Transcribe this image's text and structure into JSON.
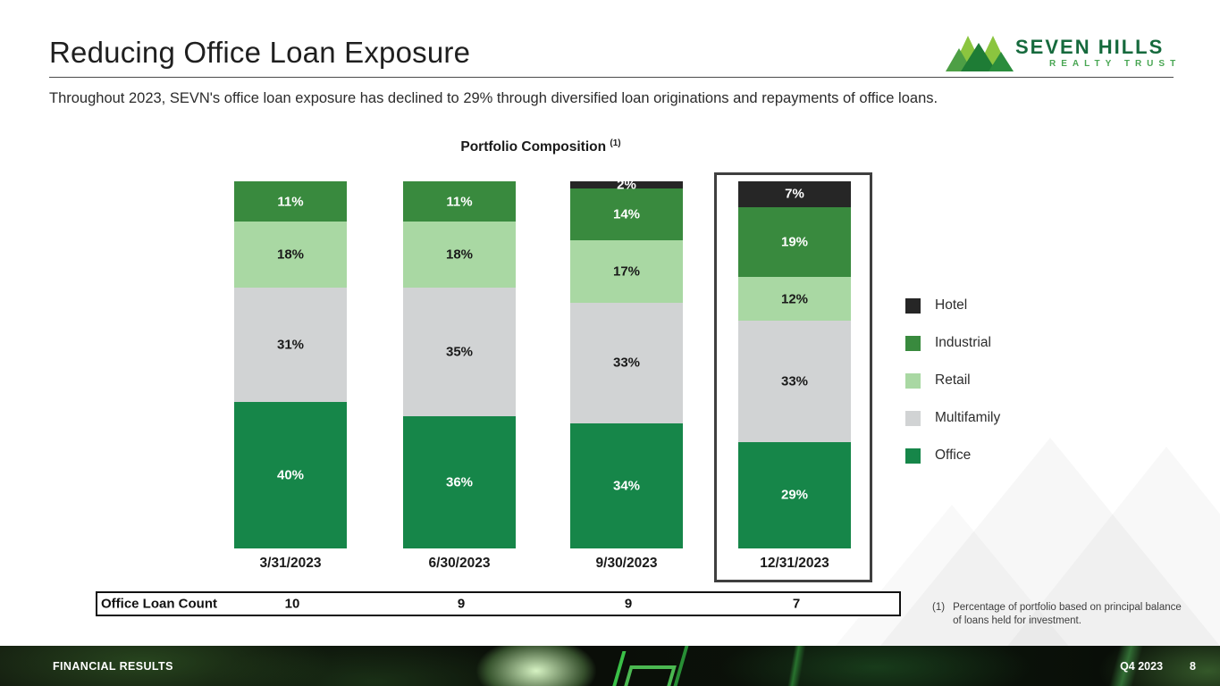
{
  "slide": {
    "title": "Reducing Office Loan Exposure",
    "subtitle": "Throughout 2023, SEVN's office loan exposure has declined to 29% through diversified loan originations and repayments of office loans."
  },
  "logo": {
    "name": "SEVEN HILLS",
    "tagline": "REALTY TRUST",
    "colors": {
      "light_green": "#8bc53f",
      "mid_green": "#4d9f45",
      "dark_green": "#1e7c35",
      "text_green": "#166a3d",
      "tagline_green": "#49a653"
    }
  },
  "chart_data": {
    "type": "bar",
    "stacked": true,
    "title": "Portfolio Composition",
    "title_footnote_ref": "(1)",
    "categories": [
      "3/31/2023",
      "6/30/2023",
      "9/30/2023",
      "12/31/2023"
    ],
    "series": [
      {
        "name": "Hotel",
        "color": "#262626",
        "label_color": "#ffffff",
        "values": [
          0,
          0,
          2,
          7
        ]
      },
      {
        "name": "Industrial",
        "color": "#398a3e",
        "label_color": "#ffffff",
        "values": [
          11,
          11,
          14,
          19
        ]
      },
      {
        "name": "Retail",
        "color": "#a9d8a3",
        "label_color": "#1a1a1a",
        "values": [
          18,
          18,
          17,
          12
        ]
      },
      {
        "name": "Multifamily",
        "color": "#d1d3d4",
        "label_color": "#1a1a1a",
        "values": [
          31,
          35,
          33,
          33
        ]
      },
      {
        "name": "Office",
        "color": "#168649",
        "label_color": "#ffffff",
        "values": [
          40,
          36,
          34,
          29
        ]
      }
    ],
    "value_suffix": "%",
    "ylim": [
      0,
      100
    ],
    "grid": false,
    "legend_position": "right",
    "highlighted_category": "12/31/2023"
  },
  "table": {
    "label": "Office Loan Count",
    "values": [
      "10",
      "9",
      "9",
      "7"
    ]
  },
  "footnote": {
    "marker": "(1)",
    "text": "Percentage of portfolio based on principal balance of loans held for investment."
  },
  "footer": {
    "left": "FINANCIAL RESULTS",
    "right": "Q4 2023",
    "page": "8"
  }
}
